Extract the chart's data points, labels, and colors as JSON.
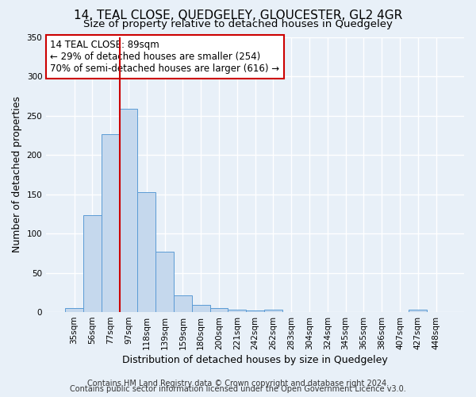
{
  "title": "14, TEAL CLOSE, QUEDGELEY, GLOUCESTER, GL2 4GR",
  "subtitle": "Size of property relative to detached houses in Quedgeley",
  "xlabel": "Distribution of detached houses by size in Quedgeley",
  "ylabel": "Number of detached properties",
  "bar_labels": [
    "35sqm",
    "56sqm",
    "77sqm",
    "97sqm",
    "118sqm",
    "139sqm",
    "159sqm",
    "180sqm",
    "200sqm",
    "221sqm",
    "242sqm",
    "262sqm",
    "283sqm",
    "304sqm",
    "324sqm",
    "345sqm",
    "365sqm",
    "386sqm",
    "407sqm",
    "427sqm",
    "448sqm"
  ],
  "bar_values": [
    5,
    123,
    226,
    259,
    153,
    77,
    21,
    9,
    5,
    3,
    2,
    3,
    0,
    0,
    0,
    0,
    0,
    0,
    0,
    3,
    0
  ],
  "bar_color": "#c5d8ed",
  "bar_edge_color": "#5b9bd5",
  "background_color": "#e8f0f8",
  "grid_color": "#ffffff",
  "vline_x": 2.5,
  "vline_color": "#cc0000",
  "annotation_text": "14 TEAL CLOSE: 89sqm\n← 29% of detached houses are smaller (254)\n70% of semi-detached houses are larger (616) →",
  "annotation_box_color": "#ffffff",
  "annotation_box_edge": "#cc0000",
  "ylim": [
    0,
    350
  ],
  "yticks": [
    0,
    50,
    100,
    150,
    200,
    250,
    300,
    350
  ],
  "footer1": "Contains HM Land Registry data © Crown copyright and database right 2024.",
  "footer2": "Contains public sector information licensed under the Open Government Licence v3.0.",
  "title_fontsize": 11,
  "subtitle_fontsize": 9.5,
  "axis_label_fontsize": 9,
  "tick_fontsize": 7.5,
  "annotation_fontsize": 8.5,
  "footer_fontsize": 7
}
